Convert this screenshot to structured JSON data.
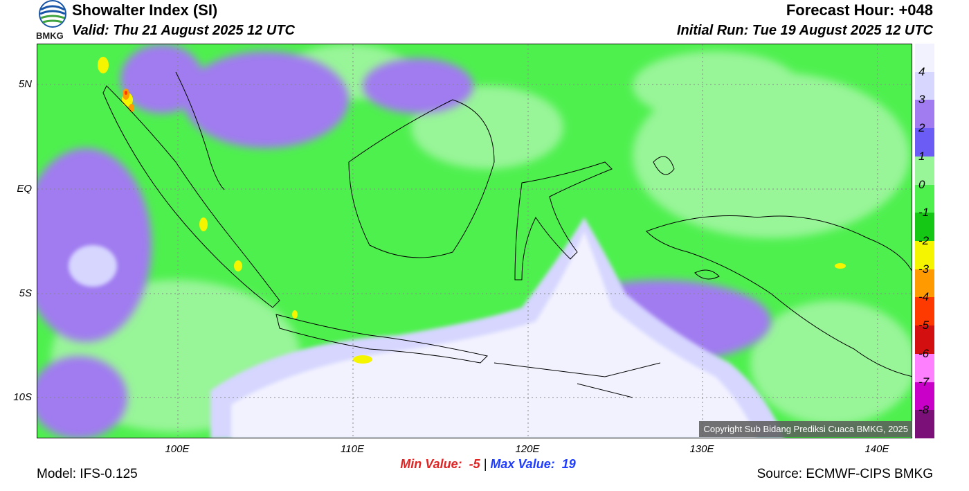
{
  "header": {
    "title": "Showalter Index (SI)",
    "valid": "Valid: Thu 21 August 2025 12 UTC",
    "forecast_hour": "Forecast Hour: +048",
    "initial_run": "Initial Run: Tue 19 August 2025 12 UTC"
  },
  "logo": {
    "text": "BMKG",
    "icon": "bmkg-logo-icon"
  },
  "map": {
    "lat_labels": [
      "5N",
      "EQ",
      "5S",
      "10S"
    ],
    "lon_labels": [
      "100E",
      "110E",
      "120E",
      "130E",
      "140E"
    ],
    "copyright": "Copyright Sub Bidang Prediksi Cuaca BMKG, 2025"
  },
  "colorbar": {
    "labels": [
      "4",
      "3",
      "2",
      "1",
      "0",
      "-1",
      "-2",
      "-3",
      "-4",
      "-5",
      "-6",
      "-7",
      "-8"
    ],
    "colors": [
      "#f2f2ff",
      "#d6d6ff",
      "#a07cf0",
      "#6a5cf5",
      "#98f598",
      "#4ef04e",
      "#16c816",
      "#f5f500",
      "#ff9a00",
      "#ff3a00",
      "#d40f0f",
      "#ff80ff",
      "#c800c8",
      "#7a1078"
    ]
  },
  "stats": {
    "min_label": "Min Value:",
    "min_value": "-5",
    "separator": "|",
    "max_label": "Max Value:",
    "max_value": "19"
  },
  "footer": {
    "model": "Model: IFS-0.125",
    "source": "Source: ECMWF-CIPS BMKG"
  }
}
